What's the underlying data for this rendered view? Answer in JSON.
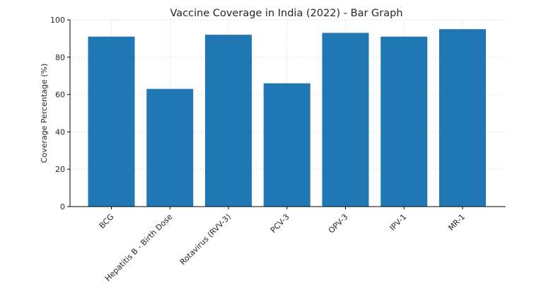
{
  "chart_data": {
    "type": "bar",
    "title": "Vaccine Coverage in India (2022) - Bar Graph",
    "xlabel": "",
    "ylabel": "Coverage Percentage (%)",
    "categories": [
      "BCG",
      "Hepatitis B - Birth Dose",
      "Rotavirus (RVV-3)",
      "PCV-3",
      "OPV-3",
      "IPV-1",
      "MR-1"
    ],
    "values": [
      91,
      63,
      92,
      66,
      93,
      91,
      95
    ],
    "ylim": [
      0,
      100
    ],
    "yticks": [
      0,
      20,
      40,
      60,
      80,
      100
    ],
    "grid": true,
    "bar_color": "#1f77b4",
    "grid_color": "#d9d9d9",
    "axis_color": "#000000"
  }
}
